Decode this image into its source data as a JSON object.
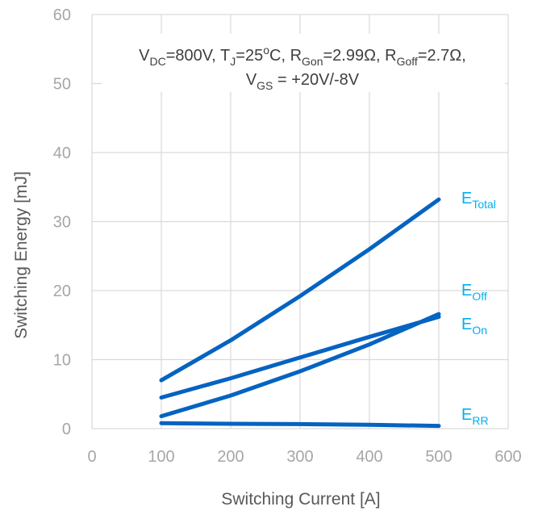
{
  "chart_data": {
    "type": "line",
    "xlabel": "Switching Current [A]",
    "ylabel": "Switching Energy [mJ]",
    "xlim": [
      0,
      600
    ],
    "ylim": [
      0,
      60
    ],
    "x_ticks": [
      "0",
      "100",
      "200",
      "300",
      "400",
      "500",
      "600"
    ],
    "y_ticks": [
      "0",
      "10",
      "20",
      "30",
      "40",
      "50",
      "60"
    ],
    "grid": true,
    "conditions": {
      "line1": [
        {
          "t": "V"
        },
        {
          "t": "DC",
          "sub": true
        },
        {
          "t": "=800V, T"
        },
        {
          "t": "J",
          "sub": true
        },
        {
          "t": "=25"
        },
        {
          "t": "o",
          "sup": true
        },
        {
          "t": "C, R"
        },
        {
          "t": "Gon",
          "sub": true
        },
        {
          "t": "=2.99Ω, R"
        },
        {
          "t": "Goff",
          "sub": true
        },
        {
          "t": "=2.7Ω,"
        }
      ],
      "line2": [
        {
          "t": "V"
        },
        {
          "t": "GS",
          "sub": true
        },
        {
          "t": " = +20V/-8V"
        }
      ]
    },
    "series": [
      {
        "name": "E",
        "subscript": "Total",
        "color": "#0563c1",
        "x": [
          100,
          200,
          300,
          400,
          500
        ],
        "y": [
          7.0,
          12.8,
          19.2,
          26.0,
          33.2
        ]
      },
      {
        "name": "E",
        "subscript": "Off",
        "color": "#0563c1",
        "x": [
          100,
          200,
          300,
          400,
          500
        ],
        "y": [
          4.5,
          7.3,
          10.3,
          13.3,
          16.2
        ]
      },
      {
        "name": "E",
        "subscript": "On",
        "color": "#0563c1",
        "x": [
          100,
          200,
          300,
          400,
          500
        ],
        "y": [
          1.8,
          4.8,
          8.3,
          12.2,
          16.6
        ]
      },
      {
        "name": "E",
        "subscript": "RR",
        "color": "#0563c1",
        "x": [
          100,
          200,
          300,
          400,
          500
        ],
        "y": [
          0.8,
          0.7,
          0.65,
          0.55,
          0.4
        ]
      }
    ],
    "label_color": "#00b0f0"
  }
}
